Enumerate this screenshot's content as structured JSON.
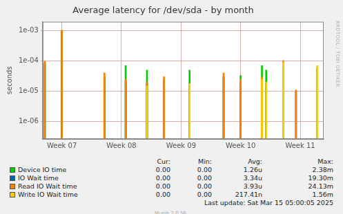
{
  "chart_data": {
    "type": "bar",
    "title": "Average latency for /dev/sda - by month",
    "y_label": "seconds",
    "log": "y",
    "grid": true,
    "legend": "bottom",
    "ylim": [
      2.6e-07,
      0.002
    ],
    "yticks": [
      {
        "value": 1e-06,
        "label": "1e-06"
      },
      {
        "value": 1e-05,
        "label": "1e-05"
      },
      {
        "value": 0.0001,
        "label": "1e-04"
      },
      {
        "value": 0.001,
        "label": "1e-03"
      }
    ],
    "categories": [
      null,
      null,
      null,
      null,
      "Week 07",
      null,
      null,
      null,
      null,
      null,
      null,
      null,
      null,
      null,
      null,
      null,
      null,
      null,
      "Week 08",
      null,
      null,
      null,
      null,
      null,
      null,
      null,
      null,
      null,
      null,
      null,
      null,
      null,
      "Week 09",
      null,
      null,
      null,
      null,
      null,
      null,
      null,
      null,
      null,
      null,
      null,
      null,
      null,
      "Week 10",
      null,
      null,
      null,
      null,
      null,
      null,
      null,
      null,
      null,
      null,
      null,
      null,
      null,
      "Week 11",
      null,
      null,
      null,
      null,
      null
    ],
    "stats_columns": [
      "Cur:",
      "Min:",
      "Avg:",
      "Max:"
    ],
    "series": [
      {
        "name": "Device IO time",
        "color": "#00cc00",
        "stats": [
          "0.00",
          "0.00",
          "1.26u",
          "2.38m"
        ],
        "values": [
          9e-05,
          null,
          null,
          null,
          0.001,
          null,
          null,
          null,
          null,
          null,
          null,
          null,
          null,
          null,
          3e-05,
          null,
          null,
          null,
          null,
          7e-05,
          null,
          null,
          null,
          null,
          5e-05,
          null,
          null,
          null,
          null,
          null,
          null,
          null,
          null,
          null,
          5e-05,
          null,
          null,
          null,
          null,
          null,
          null,
          null,
          3e-05,
          null,
          null,
          null,
          3.3e-05,
          null,
          null,
          null,
          null,
          7e-05,
          5e-05,
          null,
          null,
          null,
          9e-05,
          null,
          null,
          null,
          null,
          null,
          null,
          null,
          null,
          null
        ]
      },
      {
        "name": "IO Wait time",
        "color": "#0066b3",
        "stats": [
          "0.00",
          "0.00",
          "3.34u",
          "19.30m"
        ],
        "values": [
          8e-05,
          null,
          null,
          null,
          0.0009,
          null,
          null,
          null,
          null,
          null,
          null,
          null,
          null,
          null,
          3e-05,
          null,
          null,
          null,
          null,
          2e-05,
          null,
          null,
          null,
          null,
          1.8e-05,
          null,
          null,
          null,
          2.5e-05,
          null,
          null,
          null,
          null,
          null,
          1.5e-05,
          null,
          null,
          null,
          null,
          null,
          null,
          null,
          3e-05,
          null,
          null,
          null,
          2e-05,
          null,
          null,
          null,
          null,
          2.5e-05,
          1.8e-05,
          null,
          null,
          null,
          9e-05,
          null,
          null,
          1e-05,
          null,
          null,
          null,
          null,
          6e-05,
          null
        ]
      },
      {
        "name": "Read IO Wait time",
        "color": "#ff8000",
        "stats": [
          "0.00",
          "0.00",
          "3.93u",
          "24.13m"
        ],
        "values": [
          0.0001,
          null,
          null,
          null,
          0.00105,
          null,
          null,
          null,
          null,
          null,
          null,
          null,
          null,
          null,
          4e-05,
          null,
          null,
          null,
          null,
          2.5e-05,
          null,
          null,
          null,
          null,
          2e-05,
          null,
          null,
          null,
          3e-05,
          null,
          null,
          null,
          null,
          null,
          null,
          null,
          null,
          null,
          null,
          null,
          null,
          null,
          4e-05,
          null,
          null,
          null,
          2.5e-05,
          null,
          null,
          null,
          null,
          3e-05,
          null,
          null,
          null,
          null,
          0.000105,
          null,
          null,
          1.1e-05,
          null,
          null,
          null,
          null,
          null,
          null
        ]
      },
      {
        "name": "Write IO Wait time",
        "color": "#ffcc00",
        "stats": [
          "0.00",
          "0.00",
          "217.41n",
          "1.56m"
        ],
        "values": [
          null,
          null,
          null,
          null,
          null,
          null,
          null,
          null,
          null,
          null,
          null,
          null,
          null,
          null,
          null,
          null,
          null,
          null,
          null,
          null,
          null,
          null,
          null,
          null,
          1.5e-05,
          null,
          null,
          null,
          null,
          null,
          null,
          null,
          null,
          null,
          1.8e-05,
          null,
          null,
          null,
          null,
          null,
          null,
          null,
          null,
          null,
          null,
          null,
          null,
          null,
          null,
          null,
          null,
          2.5e-05,
          2e-05,
          null,
          null,
          null,
          9e-05,
          null,
          null,
          null,
          null,
          null,
          null,
          null,
          7e-05,
          null
        ]
      }
    ],
    "footer": "Last update: Sat Mar 15 05:00:05 2025",
    "version": "Munin 2.0.56",
    "watermark": "RRDTOOL / TOBI OETIKER"
  }
}
